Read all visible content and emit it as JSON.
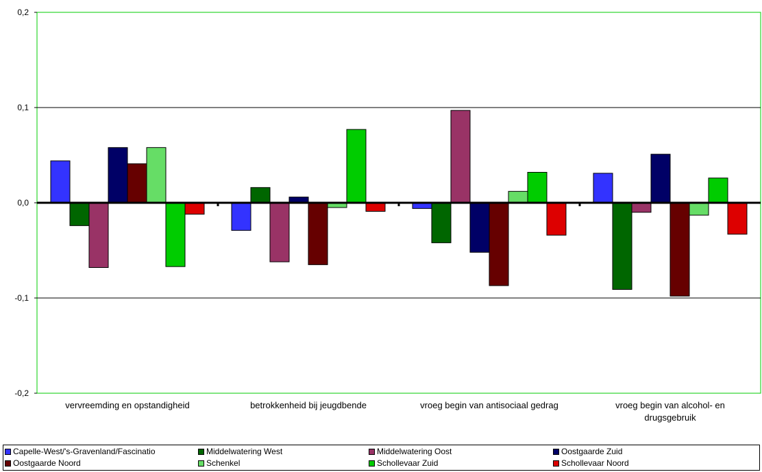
{
  "chart_data": {
    "type": "bar",
    "categories": [
      "vervreemding en opstandigheid",
      "betrokkenheid bij jeugdbende",
      "vroeg begin van antisociaal gedrag",
      "vroeg begin van alcohol- en drugsgebruik"
    ],
    "series": [
      {
        "name": "Capelle-West/'s-Gravenland/Fascinatio",
        "color": "#3333FF",
        "values": [
          0.044,
          -0.029,
          -0.006,
          0.031
        ]
      },
      {
        "name": "Middelwatering West",
        "color": "#006600",
        "values": [
          -0.024,
          0.016,
          -0.042,
          -0.091
        ]
      },
      {
        "name": "Middelwatering Oost",
        "color": "#993366",
        "values": [
          -0.068,
          -0.062,
          0.097,
          -0.01
        ]
      },
      {
        "name": "Oostgaarde Zuid",
        "color": "#000066",
        "values": [
          0.058,
          0.006,
          -0.052,
          0.051
        ]
      },
      {
        "name": "Oostgaarde Noord",
        "color": "#660000",
        "values": [
          0.041,
          -0.065,
          -0.087,
          -0.098
        ]
      },
      {
        "name": "Schenkel",
        "color": "#66DD66",
        "values": [
          0.058,
          -0.005,
          0.012,
          -0.013
        ]
      },
      {
        "name": "Schollevaar Zuid",
        "color": "#00CC00",
        "values": [
          -0.067,
          0.077,
          0.032,
          0.026
        ]
      },
      {
        "name": "Schollevaar Noord",
        "color": "#DD0000",
        "values": [
          -0.012,
          -0.009,
          -0.034,
          -0.033
        ]
      }
    ],
    "ylim": [
      -0.2,
      0.2
    ],
    "yticks": [
      "-0,2",
      "-0,1",
      "0,0",
      "0,1",
      "0,2"
    ],
    "grid": true,
    "legend_position": "bottom"
  }
}
